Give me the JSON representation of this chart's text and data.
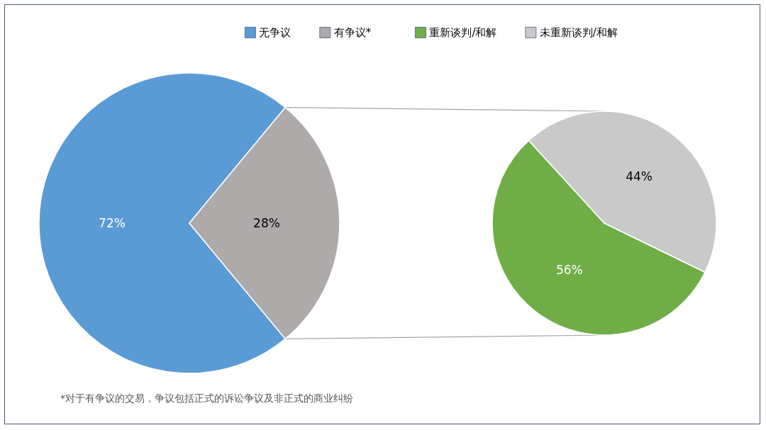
{
  "chart_data": [
    {
      "type": "pie",
      "categories": [
        "无争议",
        "有争议*"
      ],
      "values": [
        72,
        28
      ],
      "colors": [
        "#5b9bd5",
        "#aeaaaa"
      ],
      "value_labels": [
        "72%",
        "28%"
      ],
      "legend": "top",
      "annotations": [
        "*对于有争议的交易，争议包括正式的诉讼争议及非正式的商业纠纷"
      ]
    },
    {
      "type": "pie",
      "categories": [
        "重新谈判/和解",
        "未重新谈判/和解"
      ],
      "values": [
        56,
        44
      ],
      "colors": [
        "#70ad47",
        "#c9c9c9"
      ],
      "value_labels": [
        "56%",
        "44%"
      ],
      "legend": "top"
    }
  ]
}
